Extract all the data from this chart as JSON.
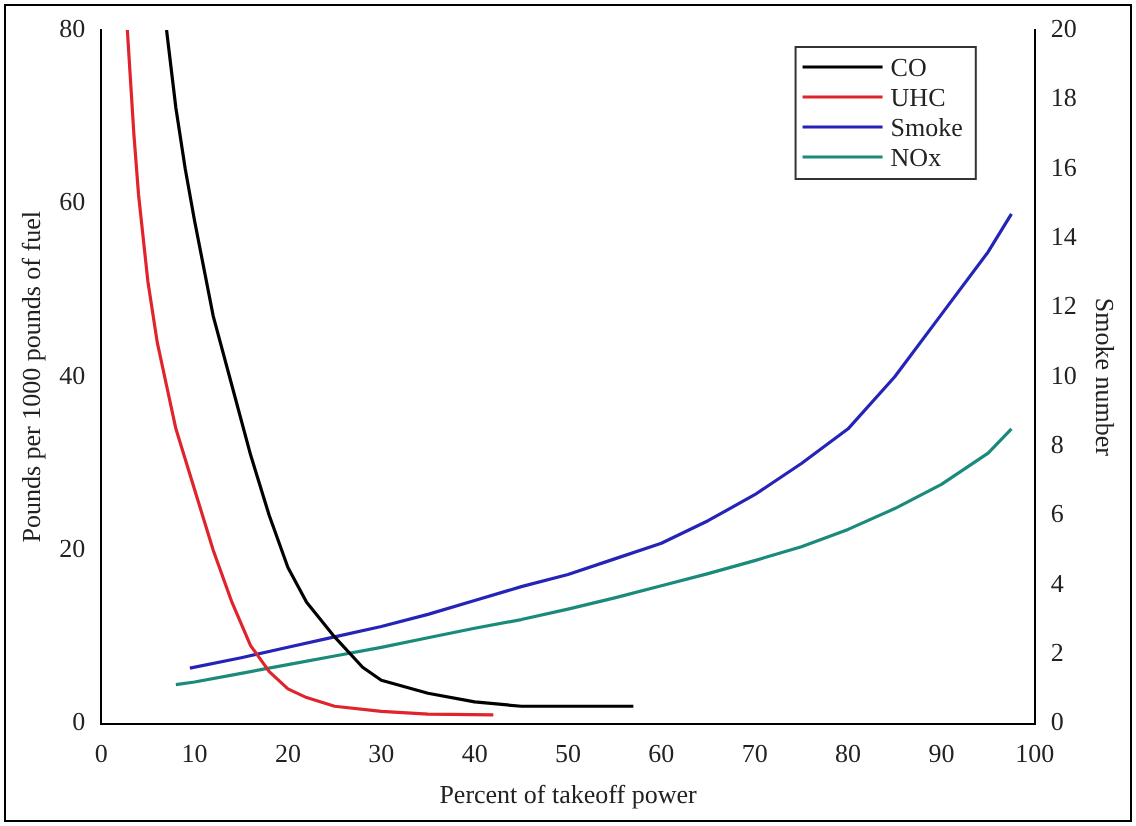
{
  "chart_data": {
    "type": "line",
    "xlabel": "Percent of takeoff power",
    "ylabel": "Pounds per 1000 pounds of fuel",
    "y2label": "Smoke number",
    "xlim": [
      0,
      100
    ],
    "xticks": [
      0,
      10,
      20,
      30,
      40,
      50,
      60,
      70,
      80,
      90,
      100
    ],
    "ylim": [
      0,
      80
    ],
    "yticks": [
      0,
      20,
      40,
      60,
      80
    ],
    "y2lim": [
      0,
      20
    ],
    "y2ticks": [
      0,
      2,
      4,
      6,
      8,
      10,
      12,
      14,
      16,
      18,
      20
    ],
    "grid": false,
    "legend": "top right",
    "marker": "none",
    "line_style": "solid",
    "series": [
      {
        "name": "CO",
        "color": "#000000",
        "x": [
          7,
          8,
          9,
          10,
          12,
          14,
          16,
          18,
          20,
          22,
          25,
          28,
          30,
          35,
          40,
          45,
          50,
          57
        ],
        "values": [
          80,
          71,
          64,
          58,
          47,
          39,
          31,
          24,
          18,
          14,
          10,
          6.5,
          5,
          3.5,
          2.5,
          2,
          2,
          2
        ]
      },
      {
        "name": "UHC",
        "color": "#e0242c",
        "x": [
          2.8,
          3.5,
          4,
          5,
          6,
          7,
          8,
          10,
          12,
          14,
          16,
          18,
          20,
          22,
          25,
          30,
          35,
          42
        ],
        "values": [
          80,
          68,
          61,
          51,
          44,
          39,
          34,
          27,
          20,
          14,
          9,
          6,
          4,
          3,
          2,
          1.4,
          1.1,
          1
        ]
      },
      {
        "name": "Smoke",
        "color": "#2424b8",
        "axis": "y2",
        "x": [
          9.5,
          15,
          20,
          25,
          30,
          35,
          40,
          45,
          50,
          55,
          60,
          65,
          70,
          75,
          80,
          85,
          90,
          95,
          97.5
        ],
        "values": [
          1.6,
          1.9,
          2.2,
          2.5,
          2.8,
          3.15,
          3.55,
          3.95,
          4.3,
          4.75,
          5.2,
          5.85,
          6.6,
          7.5,
          8.5,
          10,
          11.8,
          13.6,
          14.7
        ]
      },
      {
        "name": "NOx",
        "color": "#1a8a7a",
        "x": [
          8,
          10,
          15,
          20,
          25,
          30,
          35,
          40,
          45,
          50,
          55,
          60,
          65,
          70,
          75,
          80,
          85,
          90,
          95,
          97.5
        ],
        "values": [
          4.5,
          4.8,
          5.8,
          6.8,
          7.8,
          8.8,
          9.9,
          11,
          12,
          13.2,
          14.5,
          15.9,
          17.3,
          18.8,
          20.4,
          22.4,
          24.8,
          27.6,
          31.2,
          34
        ]
      }
    ]
  }
}
